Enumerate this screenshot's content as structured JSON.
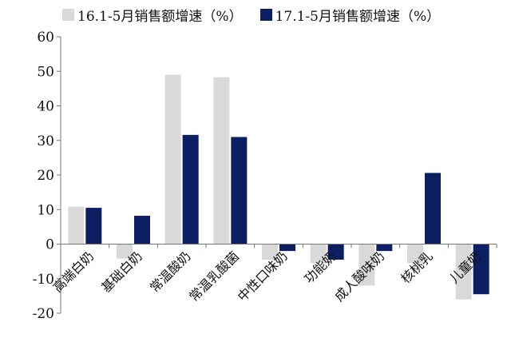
{
  "chart_data": {
    "type": "bar",
    "categories": [
      "高端白奶",
      "基础白奶",
      "常温酸奶",
      "常温乳酸菌",
      "中性口味奶",
      "功能奶",
      "成人酸味奶",
      "核桃乳",
      "儿童奶"
    ],
    "series": [
      {
        "name": "16.1-5月销售额增速（%）",
        "color": "#d9d9d9",
        "values": [
          10.8,
          -4.2,
          49,
          48.3,
          -4.5,
          -5.5,
          -12,
          -5.5,
          -16
        ]
      },
      {
        "name": "17.1-5月销售额增速（%）",
        "color": "#0d1f63",
        "values": [
          10.5,
          8.2,
          31.6,
          31,
          -2,
          -4.5,
          -2,
          20.6,
          -14.5
        ]
      }
    ],
    "yticks": [
      "60",
      "50",
      "40",
      "30",
      "20",
      "10",
      "0",
      "-10",
      "-20"
    ],
    "ylim": [
      -20,
      60
    ],
    "grid": false,
    "legend": "top"
  }
}
